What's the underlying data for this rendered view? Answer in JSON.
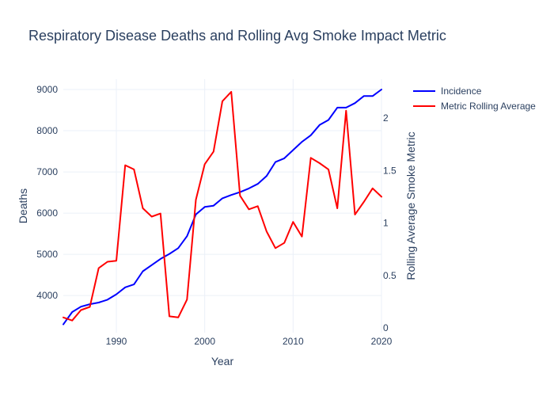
{
  "chart_data": {
    "type": "line",
    "title": "Respiratory Disease Deaths and Rolling Avg Smoke Impact Metric",
    "xlabel": "Year",
    "ylabel": "Deaths",
    "y2label": "Rolling Average Smoke Metric",
    "xlim": [
      1984,
      2020
    ],
    "ylim": [
      3100,
      9250
    ],
    "y2lim": [
      0,
      2.2
    ],
    "x_ticks": [
      1990,
      2000,
      2010,
      2020
    ],
    "y_ticks": [
      4000,
      5000,
      6000,
      7000,
      8000,
      9000
    ],
    "y2_ticks": [
      0,
      0.5,
      1,
      1.5,
      2
    ],
    "legend_position": "top-right",
    "grid": true,
    "series": [
      {
        "name": "Incidence",
        "axis": "left",
        "color": "#0000ff",
        "x": [
          1984,
          1985,
          1986,
          1987,
          1988,
          1989,
          1990,
          1991,
          1992,
          1993,
          1994,
          1995,
          1996,
          1997,
          1998,
          1999,
          2000,
          2001,
          2002,
          2003,
          2004,
          2005,
          2006,
          2007,
          2008,
          2009,
          2010,
          2011,
          2012,
          2013,
          2014,
          2015,
          2016,
          2017,
          2018,
          2019,
          2020
        ],
        "values": [
          3300,
          3600,
          3730,
          3790,
          3830,
          3900,
          4030,
          4200,
          4270,
          4590,
          4740,
          4890,
          5010,
          5150,
          5440,
          5970,
          6150,
          6180,
          6360,
          6440,
          6510,
          6600,
          6710,
          6900,
          7240,
          7330,
          7530,
          7730,
          7890,
          8140,
          8260,
          8560,
          8560,
          8670,
          8840,
          8840,
          9000
        ]
      },
      {
        "name": "Metric Rolling Average",
        "axis": "right",
        "color": "#ff0000",
        "x": [
          1984,
          1985,
          1986,
          1987,
          1988,
          1989,
          1990,
          1991,
          1992,
          1993,
          1994,
          1995,
          1996,
          1997,
          1998,
          1999,
          2000,
          2001,
          2002,
          2003,
          2004,
          2005,
          2006,
          2007,
          2008,
          2009,
          2010,
          2011,
          2012,
          2013,
          2014,
          2015,
          2016,
          2017,
          2018,
          2019,
          2020
        ],
        "values": [
          0.1,
          0.07,
          0.17,
          0.2,
          0.57,
          0.63,
          0.64,
          1.55,
          1.51,
          1.14,
          1.06,
          1.09,
          0.11,
          0.1,
          0.27,
          1.22,
          1.56,
          1.68,
          2.16,
          2.25,
          1.26,
          1.13,
          1.16,
          0.92,
          0.76,
          0.81,
          1.01,
          0.87,
          1.62,
          1.57,
          1.51,
          1.14,
          2.07,
          1.08,
          1.2,
          1.33,
          1.25
        ]
      }
    ]
  }
}
